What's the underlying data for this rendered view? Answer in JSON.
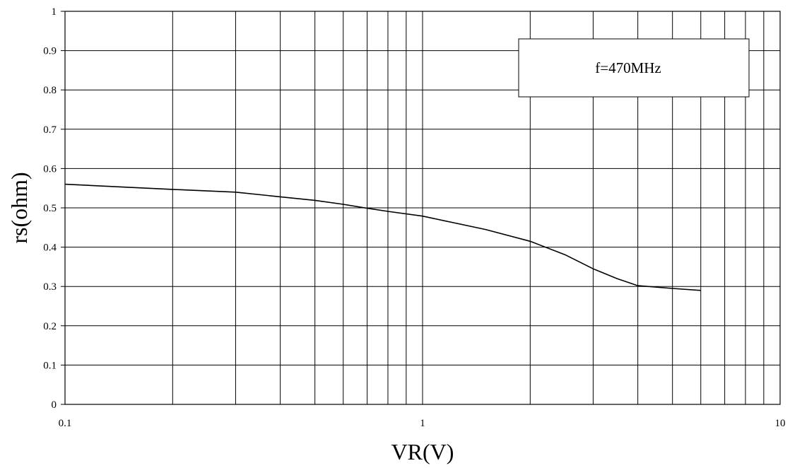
{
  "chart_data": {
    "type": "line",
    "title": "",
    "xlabel": "VR(V)",
    "ylabel": "rs(ohm)",
    "x_scale": "log",
    "xlim": [
      0.1,
      10
    ],
    "ylim": [
      0,
      1
    ],
    "grid": true,
    "x_tick_labels": [
      "0.1",
      "1",
      "10"
    ],
    "y_tick_labels": [
      "0",
      "0.1",
      "0.2",
      "0.3",
      "0.4",
      "0.5",
      "0.6",
      "0.7",
      "0.8",
      "0.9",
      "1"
    ],
    "annotation": "f=470MHz",
    "annotation_position": "top-right",
    "series": [
      {
        "x": [
          0.1,
          0.2,
          0.3,
          0.4,
          0.5,
          0.6,
          0.7,
          0.8,
          1.0,
          1.5,
          2.0,
          2.5,
          3.0,
          3.5,
          4.0,
          5.0,
          6.0
        ],
        "y": [
          0.56,
          0.547,
          0.54,
          0.528,
          0.519,
          0.509,
          0.499,
          0.491,
          0.479,
          0.445,
          0.415,
          0.381,
          0.345,
          0.32,
          0.302,
          0.295,
          0.29
        ],
        "color": "#000000"
      }
    ]
  }
}
